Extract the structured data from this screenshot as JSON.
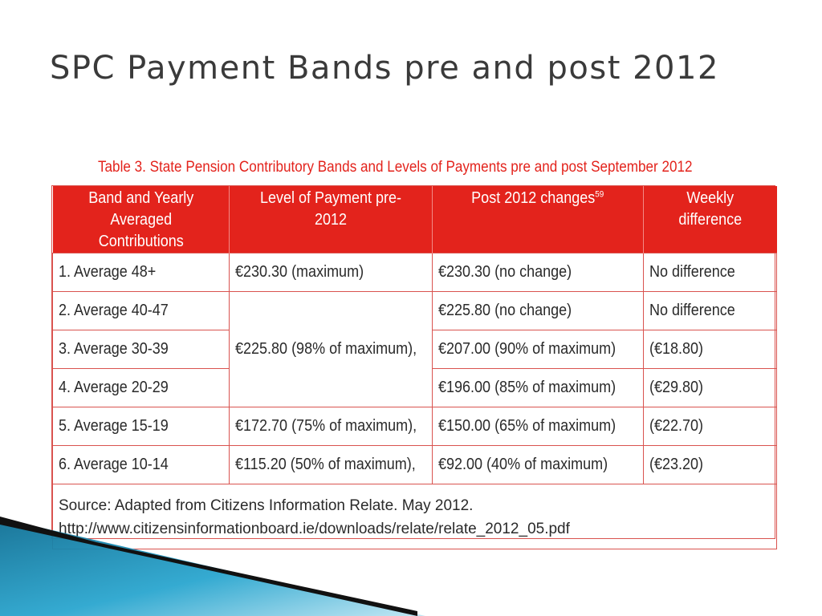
{
  "slide": {
    "title": "SPC Payment Bands pre and post 2012"
  },
  "table": {
    "caption": "Table 3. State Pension Contributory Bands and Levels of Payments pre and post September 2012",
    "headers": {
      "band_line1": "Band and Yearly",
      "band_line2": "Averaged Contributions",
      "pre2012": "Level of Payment pre-2012",
      "post2012": "Post 2012 changes",
      "post2012_footnote": "59",
      "weekly": "Weekly difference"
    },
    "rows": [
      {
        "band": "1. Average 48+",
        "pre": "€230.30 (maximum)",
        "post": "€230.30 (no change)",
        "diff": "No difference"
      },
      {
        "band": "2. Average 40-47",
        "pre": "€225.80 (98% of maximum),",
        "post": "€225.80 (no change)",
        "diff": "No difference"
      },
      {
        "band": "3. Average 30-39",
        "post": "€207.00 (90% of maximum)",
        "diff": "(€18.80)"
      },
      {
        "band": "4. Average 20-29",
        "post": "€196.00 (85% of maximum)",
        "diff": "(€29.80)"
      },
      {
        "band": "5. Average 15-19",
        "pre": "€172.70 (75% of maximum),",
        "post": "€150.00 (65% of maximum)",
        "diff": "(€22.70)"
      },
      {
        "band": "6. Average 10-14",
        "pre": "€115.20 (50% of maximum),",
        "post": "€92.00 (40% of maximum)",
        "diff": "(€23.20)"
      }
    ],
    "source": "Source: Adapted from Citizens Information Relate. May 2012. http://www.citizensinformationboard.ie/downloads/relate/relate_2012_05.pdf"
  },
  "colors": {
    "header_bg": "#e3231c",
    "caption_text": "#e3231c",
    "grid_line": "#d9534f",
    "title_text": "#3a3a3a",
    "deco_teal": "#1a8fb3",
    "deco_dark": "#111111"
  }
}
